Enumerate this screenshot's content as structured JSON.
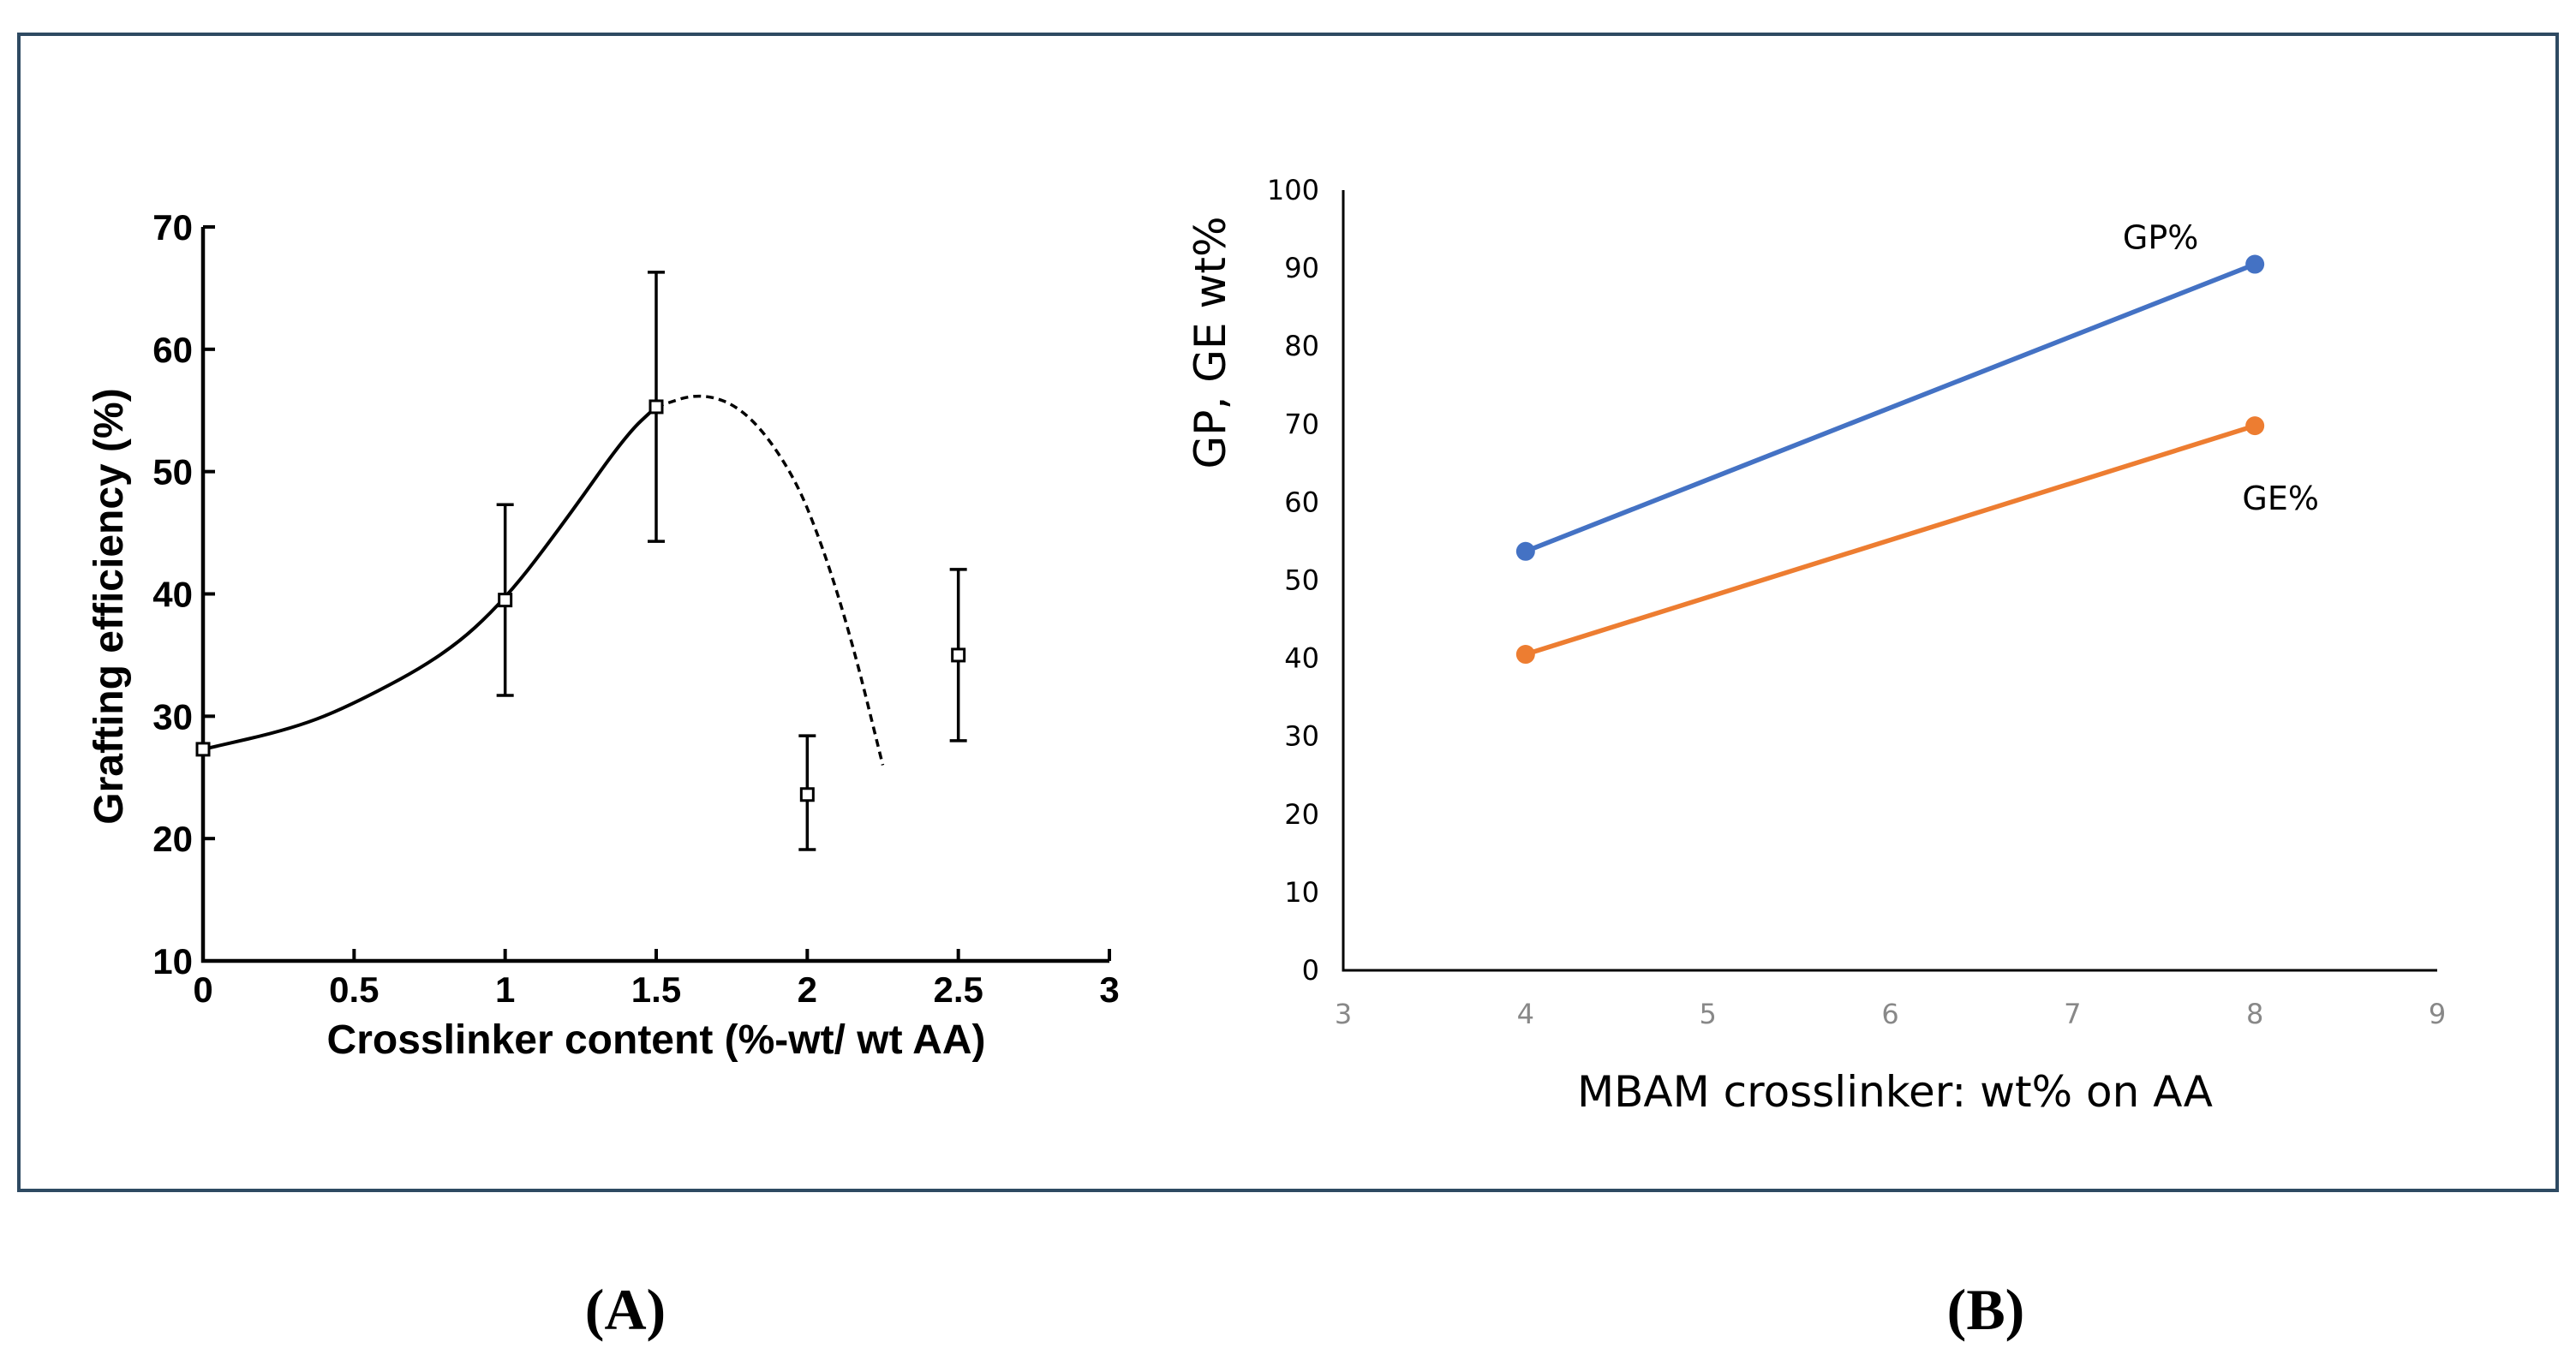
{
  "chart_data": [
    {
      "panel_label": "A",
      "type": "scatter",
      "xlabel": "Crosslinker content (%-wt/ wt AA)",
      "ylabel": "Grafting efficiency (%)",
      "xlim": [
        0,
        3
      ],
      "ylim": [
        10,
        70
      ],
      "x_ticks": [
        0,
        0.5,
        1,
        1.5,
        2,
        2.5,
        3
      ],
      "x_tick_labels": [
        "0",
        "0.5",
        "1",
        "1.5",
        "2",
        "2.5",
        "3"
      ],
      "y_ticks": [
        10,
        20,
        30,
        40,
        50,
        60,
        70
      ],
      "y_tick_labels": [
        "10",
        "20",
        "30",
        "40",
        "50",
        "60",
        "70"
      ],
      "points": [
        {
          "x": 0,
          "y": 27.3,
          "err_low": null,
          "err_high": null
        },
        {
          "x": 1,
          "y": 39.5,
          "err_low": 31.7,
          "err_high": 47.3
        },
        {
          "x": 1.5,
          "y": 55.3,
          "err_low": 44.3,
          "err_high": 66.3
        },
        {
          "x": 2,
          "y": 23.6,
          "err_low": 19.1,
          "err_high": 28.4
        },
        {
          "x": 2.5,
          "y": 35.0,
          "err_low": 28.0,
          "err_high": 42.0
        }
      ],
      "fit_curve_solid": [
        {
          "x": 0,
          "y": 27.3
        },
        {
          "x": 0.3,
          "y": 29.0
        },
        {
          "x": 0.5,
          "y": 31.0
        },
        {
          "x": 0.8,
          "y": 35.0
        },
        {
          "x": 1.0,
          "y": 39.5
        },
        {
          "x": 1.2,
          "y": 46.0
        },
        {
          "x": 1.4,
          "y": 53.0
        },
        {
          "x": 1.5,
          "y": 55.3
        }
      ],
      "fit_curve_dashed": [
        {
          "x": 1.5,
          "y": 55.3
        },
        {
          "x": 1.65,
          "y": 56.5
        },
        {
          "x": 1.8,
          "y": 55.0
        },
        {
          "x": 1.95,
          "y": 50.0
        },
        {
          "x": 2.05,
          "y": 44.0
        },
        {
          "x": 2.15,
          "y": 36.0
        },
        {
          "x": 2.25,
          "y": 26.0
        }
      ]
    },
    {
      "panel_label": "B",
      "type": "line",
      "xlabel": "MBAM crosslinker: wt% on AA",
      "ylabel": "GP, GE wt%",
      "xlim": [
        3,
        9
      ],
      "ylim": [
        0,
        100
      ],
      "x_ticks": [
        3,
        4,
        5,
        6,
        7,
        8,
        9
      ],
      "x_tick_labels": [
        "3",
        "4",
        "5",
        "6",
        "7",
        "8",
        "9"
      ],
      "y_ticks": [
        0,
        10,
        20,
        30,
        40,
        50,
        60,
        70,
        80,
        90,
        100
      ],
      "y_tick_labels": [
        "0",
        "10",
        "20",
        "30",
        "40",
        "50",
        "60",
        "70",
        "80",
        "90",
        "100"
      ],
      "series": [
        {
          "name": "GP%",
          "color": "#4472c4",
          "x": [
            4,
            8
          ],
          "y": [
            53.7,
            90.5
          ]
        },
        {
          "name": "GE%",
          "color": "#ed7d31",
          "x": [
            4,
            8
          ],
          "y": [
            40.5,
            69.8
          ]
        }
      ]
    }
  ]
}
